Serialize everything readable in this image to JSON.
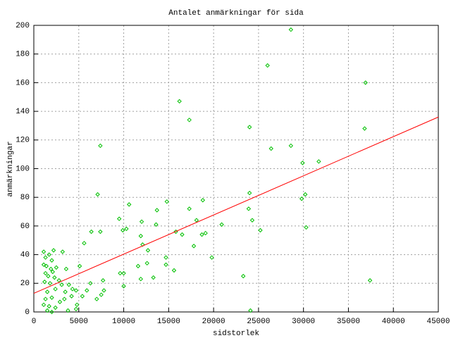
{
  "chart_data": {
    "type": "scatter",
    "title": "Antalet anmärkningar för sida",
    "xlabel": "sidstorlek",
    "ylabel": "anmärkningar",
    "xlim": [
      0,
      45000
    ],
    "xticks": [
      0,
      5000,
      10000,
      15000,
      20000,
      25000,
      30000,
      35000,
      40000,
      45000
    ],
    "ylim": [
      0,
      200
    ],
    "yticks": [
      0,
      20,
      40,
      60,
      80,
      100,
      120,
      140,
      160,
      180,
      200
    ],
    "grid": true,
    "series": [
      {
        "type": "scatter",
        "color": "#00c000",
        "x": [
          28600,
          26000,
          36900,
          16200,
          17300,
          24000,
          36800,
          7400,
          26400,
          28600,
          31700,
          29900,
          30200,
          29800,
          7100,
          24000,
          10600,
          14800,
          17300,
          18800,
          23900,
          24300,
          9500,
          18100,
          13700,
          12000,
          13600,
          20900,
          30300,
          6400,
          7400,
          10300,
          9900,
          15800,
          25200,
          16500,
          11900,
          18700,
          19100,
          12700,
          17800,
          12100,
          5600,
          19800,
          14700,
          12600,
          15600,
          11600,
          14700,
          9600,
          10000,
          13300,
          11900,
          23300,
          37400,
          7700,
          10000,
          24100,
          7800,
          7500,
          7000,
          6300,
          5900,
          5400,
          4700,
          5100,
          1100,
          2200,
          3200,
          1300,
          1700,
          2000,
          1100,
          1400,
          1900,
          2500,
          2100,
          3600,
          1300,
          1600,
          2300,
          1200,
          1800,
          2800,
          3900,
          3100,
          2400,
          1500,
          3500,
          4200,
          2000,
          1300,
          2900,
          4800,
          1100,
          1700,
          2400,
          1500,
          2000,
          3800,
          4700,
          4300,
          3400
        ],
        "values": [
          197,
          172,
          160,
          147,
          134,
          129,
          128,
          116,
          114,
          116,
          105,
          104,
          82,
          79,
          82,
          83,
          75,
          77,
          72,
          78,
          72,
          64,
          65,
          64,
          71,
          63,
          61,
          61,
          59,
          56,
          56,
          58,
          57,
          56,
          57,
          54,
          53,
          54,
          55,
          43,
          46,
          47,
          48,
          38,
          38,
          34,
          29,
          32,
          33,
          27,
          27,
          24,
          23,
          25,
          22,
          22,
          18,
          1,
          15,
          12,
          9,
          20,
          15,
          11,
          15,
          32,
          42,
          43,
          42,
          38,
          40,
          36,
          33,
          32,
          30,
          31,
          28,
          30,
          27,
          25,
          24,
          21,
          20,
          22,
          19,
          19,
          16,
          14,
          14,
          11,
          10,
          9,
          7,
          5,
          5,
          4,
          3,
          1,
          0,
          1,
          2,
          16,
          9
        ]
      },
      {
        "type": "line",
        "color": "#ff0000",
        "x": [
          0,
          45000
        ],
        "values": [
          13,
          136
        ]
      }
    ]
  }
}
